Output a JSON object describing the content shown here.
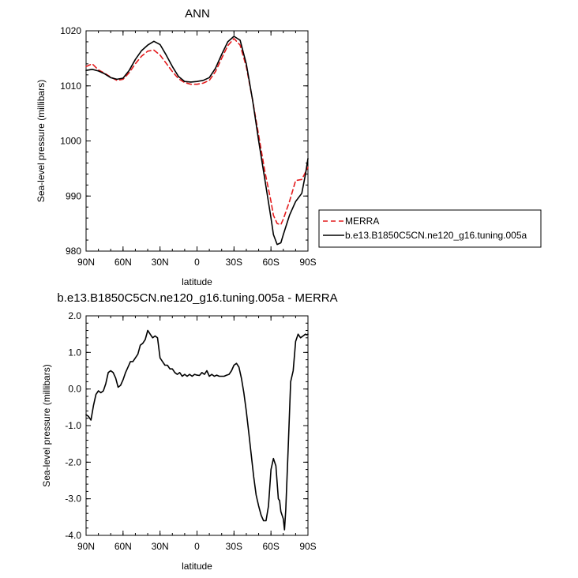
{
  "chart_data": [
    {
      "type": "line",
      "title": "ANN",
      "xlabel": "latitude",
      "ylabel": "Sea-level pressure (millibars)",
      "xlim": [
        90,
        -90
      ],
      "ylim": [
        980,
        1020
      ],
      "xticks": [
        {
          "value": 90,
          "label": "90N"
        },
        {
          "value": 60,
          "label": "60N"
        },
        {
          "value": 30,
          "label": "30N"
        },
        {
          "value": 0,
          "label": "0"
        },
        {
          "value": -30,
          "label": "30S"
        },
        {
          "value": -60,
          "label": "60S"
        },
        {
          "value": -90,
          "label": "90S"
        }
      ],
      "yticks": [
        {
          "value": 980,
          "label": "980"
        },
        {
          "value": 990,
          "label": "990"
        },
        {
          "value": 1000,
          "label": "1000"
        },
        {
          "value": 1010,
          "label": "1010"
        },
        {
          "value": 1020,
          "label": "1020"
        }
      ],
      "legend": "right",
      "series": [
        {
          "name": "MERRA",
          "color": "#e41a1c",
          "dash": "dashed",
          "x": [
            90,
            85,
            80,
            75,
            70,
            65,
            60,
            55,
            50,
            45,
            40,
            35,
            30,
            25,
            20,
            15,
            10,
            5,
            0,
            -5,
            -10,
            -15,
            -20,
            -25,
            -30,
            -35,
            -40,
            -45,
            -50,
            -55,
            -60,
            -62,
            -65,
            -68,
            -70,
            -75,
            -80,
            -85,
            -90
          ],
          "y": [
            1013.5,
            1014.0,
            1012.9,
            1012.3,
            1011.6,
            1011.0,
            1011.2,
            1012.4,
            1014.0,
            1015.4,
            1016.3,
            1016.5,
            1015.6,
            1014.1,
            1012.6,
            1011.3,
            1010.6,
            1010.3,
            1010.3,
            1010.5,
            1011.0,
            1012.6,
            1015.0,
            1017.3,
            1018.6,
            1017.4,
            1013.5,
            1007.5,
            1001.0,
            994.5,
            989.0,
            986.5,
            985.0,
            984.8,
            985.8,
            989.0,
            992.8,
            993.0,
            995.2
          ]
        },
        {
          "name": "b.e13.B1850C5CN.ne120_g16.tuning.005a",
          "color": "#000000",
          "dash": "solid",
          "x": [
            90,
            85,
            80,
            75,
            70,
            65,
            60,
            55,
            50,
            45,
            40,
            35,
            30,
            25,
            20,
            15,
            10,
            5,
            0,
            -5,
            -10,
            -15,
            -20,
            -25,
            -30,
            -35,
            -40,
            -45,
            -50,
            -55,
            -60,
            -62,
            -65,
            -68,
            -70,
            -75,
            -80,
            -85,
            -88,
            -90
          ],
          "y": [
            1012.8,
            1013.0,
            1012.7,
            1012.2,
            1011.5,
            1011.2,
            1011.4,
            1012.8,
            1014.8,
            1016.4,
            1017.4,
            1018.1,
            1017.5,
            1015.6,
            1013.5,
            1011.7,
            1010.8,
            1010.7,
            1010.8,
            1011.0,
            1011.5,
            1013.2,
            1015.7,
            1018.0,
            1019.0,
            1018.3,
            1014.0,
            1007.5,
            1000.0,
            993.0,
            986.0,
            983.0,
            981.2,
            981.5,
            983.0,
            986.5,
            989.0,
            990.5,
            994.0,
            996.8
          ]
        }
      ]
    },
    {
      "type": "line",
      "title": "b.e13.B1850C5CN.ne120_g16.tuning.005a - MERRA",
      "xlabel": "latitude",
      "ylabel": "Sea-level pressure (millibars)",
      "xlim": [
        90,
        -90
      ],
      "ylim": [
        -4.0,
        2.0
      ],
      "xticks": [
        {
          "value": 90,
          "label": "90N"
        },
        {
          "value": 60,
          "label": "60N"
        },
        {
          "value": 30,
          "label": "30N"
        },
        {
          "value": 0,
          "label": "0"
        },
        {
          "value": -30,
          "label": "30S"
        },
        {
          "value": -60,
          "label": "60S"
        },
        {
          "value": -90,
          "label": "90S"
        }
      ],
      "yticks": [
        {
          "value": 2.0,
          "label": "2.0"
        },
        {
          "value": 1.0,
          "label": "1.0"
        },
        {
          "value": 0.0,
          "label": "0.0"
        },
        {
          "value": -1.0,
          "label": "-1.0"
        },
        {
          "value": -2.0,
          "label": "-2.0"
        },
        {
          "value": -3.0,
          "label": "-3.0"
        },
        {
          "value": -4.0,
          "label": "-4.0"
        }
      ],
      "legend": "none",
      "series": [
        {
          "name": "",
          "color": "#000000",
          "dash": "solid",
          "x": [
            90,
            88,
            86,
            84,
            82,
            80,
            78,
            76,
            74,
            72,
            70,
            68,
            66,
            64,
            62,
            60,
            58,
            56,
            54,
            52,
            50,
            48,
            46,
            44,
            42,
            40,
            38,
            36,
            34,
            32,
            30,
            28,
            26,
            24,
            22,
            20,
            18,
            16,
            14,
            12,
            10,
            8,
            6,
            4,
            2,
            0,
            -2,
            -4,
            -6,
            -8,
            -10,
            -12,
            -14,
            -16,
            -18,
            -20,
            -22,
            -24,
            -26,
            -28,
            -30,
            -32,
            -34,
            -36,
            -38,
            -40,
            -42,
            -44,
            -46,
            -48,
            -50,
            -52,
            -54,
            -56,
            -58,
            -60,
            -62,
            -64,
            -66,
            -67,
            -68,
            -70,
            -71,
            -72,
            -74,
            -76,
            -78,
            -80,
            -82,
            -84,
            -86,
            -88,
            -89,
            -90
          ],
          "y": [
            -0.7,
            -0.75,
            -0.85,
            -0.45,
            -0.15,
            -0.05,
            -0.1,
            -0.05,
            0.15,
            0.45,
            0.5,
            0.45,
            0.3,
            0.05,
            0.1,
            0.25,
            0.45,
            0.6,
            0.75,
            0.75,
            0.85,
            0.95,
            1.2,
            1.25,
            1.35,
            1.6,
            1.5,
            1.4,
            1.45,
            1.4,
            0.85,
            0.75,
            0.65,
            0.65,
            0.55,
            0.55,
            0.45,
            0.4,
            0.45,
            0.35,
            0.4,
            0.35,
            0.4,
            0.35,
            0.4,
            0.38,
            0.37,
            0.45,
            0.4,
            0.5,
            0.35,
            0.4,
            0.35,
            0.38,
            0.35,
            0.35,
            0.35,
            0.38,
            0.4,
            0.5,
            0.65,
            0.7,
            0.6,
            0.3,
            -0.1,
            -0.6,
            -1.2,
            -1.8,
            -2.4,
            -2.9,
            -3.2,
            -3.45,
            -3.6,
            -3.6,
            -3.2,
            -2.2,
            -1.9,
            -2.1,
            -3.0,
            -3.05,
            -3.35,
            -3.55,
            -3.85,
            -3.3,
            -1.6,
            0.2,
            0.5,
            1.3,
            1.5,
            1.4,
            1.45,
            1.5,
            1.48,
            1.5
          ]
        }
      ]
    }
  ]
}
